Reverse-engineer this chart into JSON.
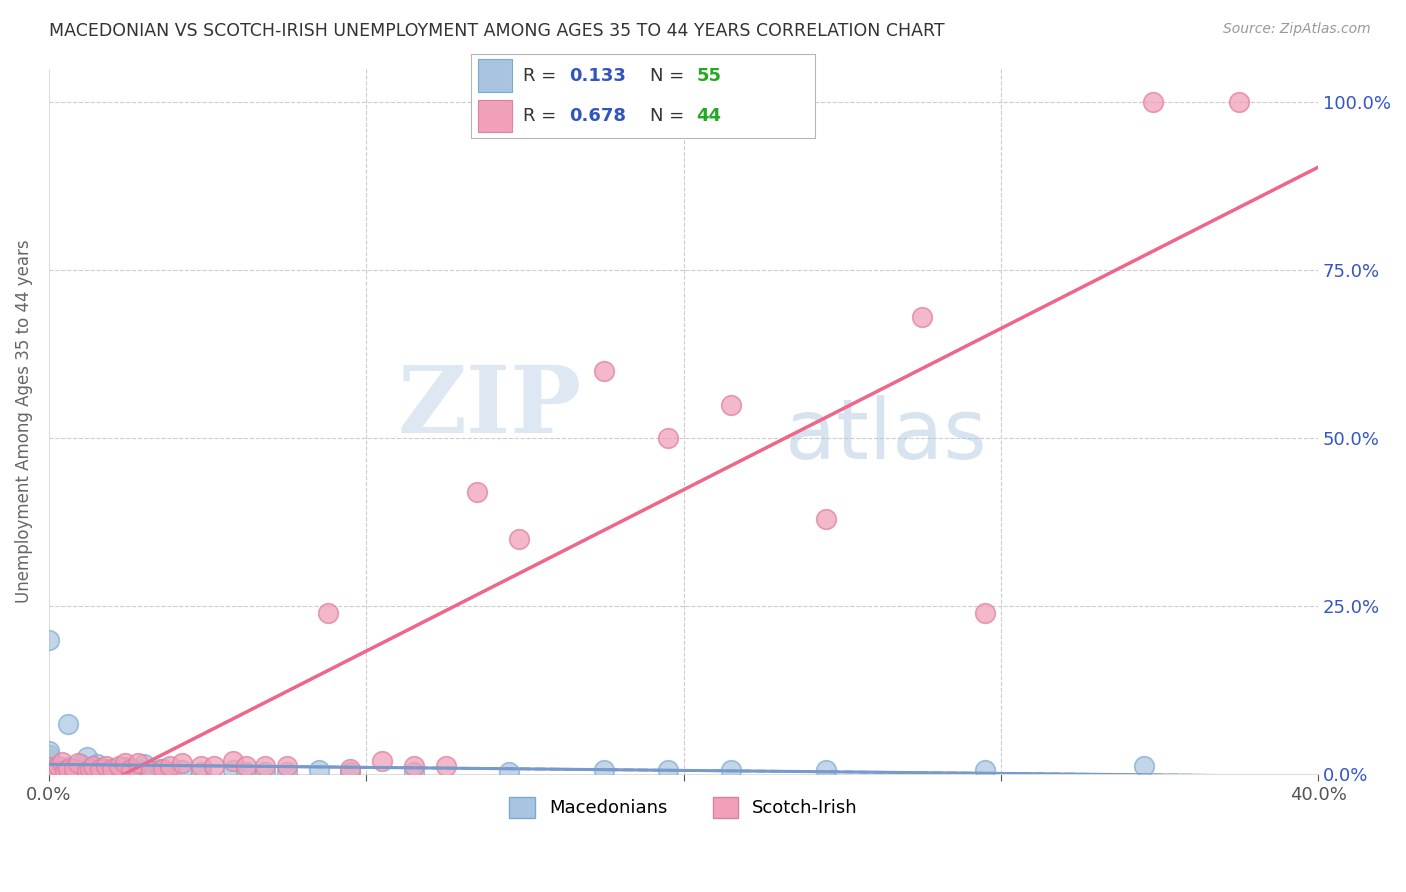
{
  "title": "MACEDONIAN VS SCOTCH-IRISH UNEMPLOYMENT AMONG AGES 35 TO 44 YEARS CORRELATION CHART",
  "source": "Source: ZipAtlas.com",
  "ylabel": "Unemployment Among Ages 35 to 44 years",
  "xmin": 0.0,
  "xmax": 0.4,
  "ymin": 0.0,
  "ymax": 1.05,
  "macedonian_color": "#a8c4e0",
  "macedonian_edge": "#7aaad0",
  "scotchirish_color": "#f0a0b8",
  "scotchirish_edge": "#e080a0",
  "macedonian_R": 0.133,
  "macedonian_N": 55,
  "scotchirish_R": 0.678,
  "scotchirish_N": 44,
  "legend_label_color": "#333333",
  "legend_R_color": "#3355bb",
  "legend_N_color": "#22aa22",
  "watermark_zip": "ZIP",
  "watermark_atlas": "atlas",
  "macedonians_x": [
    0.0,
    0.0,
    0.0,
    0.0,
    0.0,
    0.0,
    0.0,
    0.0,
    0.0,
    0.0,
    0.0,
    0.0,
    0.0,
    0.0,
    0.0,
    0.0,
    0.0,
    0.0,
    0.0,
    0.0,
    0.004,
    0.004,
    0.005,
    0.006,
    0.006,
    0.009,
    0.01,
    0.01,
    0.012,
    0.014,
    0.015,
    0.018,
    0.022,
    0.024,
    0.028,
    0.03,
    0.033,
    0.035,
    0.038,
    0.042,
    0.048,
    0.058,
    0.062,
    0.068,
    0.075,
    0.085,
    0.095,
    0.115,
    0.145,
    0.175,
    0.195,
    0.215,
    0.245,
    0.295,
    0.345
  ],
  "macedonians_y": [
    0.0,
    0.0,
    0.0,
    0.0,
    0.002,
    0.002,
    0.003,
    0.004,
    0.005,
    0.006,
    0.008,
    0.009,
    0.01,
    0.012,
    0.015,
    0.018,
    0.022,
    0.028,
    0.035,
    0.2,
    0.0,
    0.003,
    0.006,
    0.01,
    0.075,
    0.003,
    0.006,
    0.015,
    0.025,
    0.008,
    0.015,
    0.008,
    0.003,
    0.01,
    0.008,
    0.015,
    0.003,
    0.008,
    0.003,
    0.006,
    0.003,
    0.006,
    0.003,
    0.003,
    0.003,
    0.006,
    0.003,
    0.003,
    0.003,
    0.006,
    0.006,
    0.006,
    0.006,
    0.006,
    0.012
  ],
  "scotchirish_x": [
    0.0,
    0.0,
    0.002,
    0.003,
    0.004,
    0.005,
    0.006,
    0.008,
    0.009,
    0.012,
    0.013,
    0.014,
    0.016,
    0.018,
    0.02,
    0.022,
    0.024,
    0.026,
    0.028,
    0.032,
    0.036,
    0.038,
    0.042,
    0.048,
    0.052,
    0.058,
    0.062,
    0.068,
    0.075,
    0.088,
    0.095,
    0.105,
    0.115,
    0.125,
    0.135,
    0.148,
    0.175,
    0.195,
    0.215,
    0.245,
    0.275,
    0.295,
    0.348,
    0.375
  ],
  "scotchirish_y": [
    0.0,
    0.01,
    0.005,
    0.012,
    0.018,
    0.005,
    0.008,
    0.008,
    0.016,
    0.004,
    0.008,
    0.012,
    0.008,
    0.012,
    0.008,
    0.012,
    0.016,
    0.008,
    0.016,
    0.004,
    0.008,
    0.012,
    0.016,
    0.012,
    0.012,
    0.02,
    0.012,
    0.012,
    0.012,
    0.24,
    0.008,
    0.02,
    0.012,
    0.012,
    0.42,
    0.35,
    0.6,
    0.5,
    0.55,
    0.38,
    0.68,
    0.24,
    1.0,
    1.0
  ],
  "background_color": "#ffffff",
  "grid_color": "#cccccc",
  "title_color": "#333333",
  "axis_label_color": "#666666",
  "trendline_blue_color": "#7799cc",
  "trendline_pink_color": "#ee6688"
}
